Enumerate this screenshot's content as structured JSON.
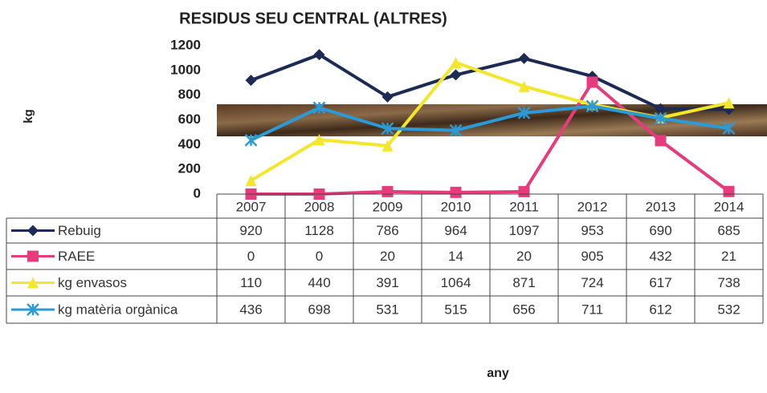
{
  "chart_data": {
    "type": "line",
    "title": "RESIDUS SEU CENTRAL (ALTRES)",
    "y_label": "kg",
    "x_label": "any",
    "categories": [
      "2007",
      "2008",
      "2009",
      "2010",
      "2011",
      "2012",
      "2013",
      "2014"
    ],
    "series": [
      {
        "name": "Rebuig",
        "color": "#1c2b55",
        "marker": "diamond",
        "values": [
          920,
          1128,
          786,
          964,
          1097,
          953,
          690,
          685
        ]
      },
      {
        "name": "RAEE",
        "color": "#e63c7d",
        "marker": "square",
        "values": [
          0,
          0,
          20,
          14,
          20,
          905,
          432,
          21
        ]
      },
      {
        "name": "kg envasos",
        "color": "#f4e72b",
        "marker": "triangle",
        "values": [
          110,
          440,
          391,
          1064,
          871,
          724,
          617,
          738
        ]
      },
      {
        "name": "kg matèria orgànica",
        "color": "#2b9ad6",
        "marker": "cross",
        "values": [
          436,
          698,
          531,
          515,
          656,
          711,
          612,
          532
        ]
      }
    ],
    "ylim": [
      0,
      1200
    ],
    "yticks": [
      0,
      200,
      400,
      600,
      800,
      1000,
      1200
    ],
    "data_table": true
  }
}
